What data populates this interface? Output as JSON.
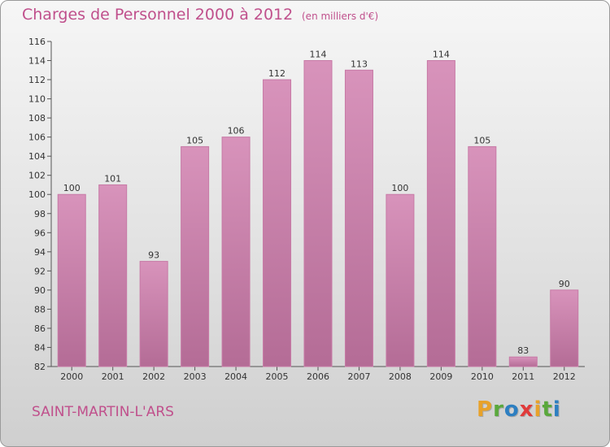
{
  "header": {
    "title": "Charges de Personnel 2000 à 2012",
    "subtitle": "(en milliers d'€)"
  },
  "footer": {
    "place": "SAINT-MARTIN-L'ARS",
    "brand_letters": [
      "P",
      "r",
      "o",
      "x",
      "i",
      "t",
      "i"
    ],
    "brand_colors": [
      "#e8a22a",
      "#5aa83c",
      "#2d7fc1",
      "#e03a3a",
      "#e8a22a",
      "#5aa83c",
      "#2d7fc1"
    ]
  },
  "chart_data": {
    "type": "bar",
    "title": "Charges de Personnel 2000 à 2012",
    "subtitle": "(en milliers d'€)",
    "categories": [
      "2000",
      "2001",
      "2002",
      "2003",
      "2004",
      "2005",
      "2006",
      "2007",
      "2008",
      "2009",
      "2010",
      "2011",
      "2012"
    ],
    "values": [
      100,
      101,
      93,
      105,
      106,
      112,
      114,
      113,
      100,
      114,
      105,
      83,
      90
    ],
    "ylim": [
      82,
      116
    ],
    "yticks": [
      82,
      84,
      86,
      88,
      90,
      92,
      94,
      96,
      98,
      100,
      102,
      104,
      106,
      108,
      110,
      112,
      114,
      116
    ],
    "grid": false,
    "bar_color": "#d893bb",
    "bar_color_dark": "#b46c96"
  }
}
